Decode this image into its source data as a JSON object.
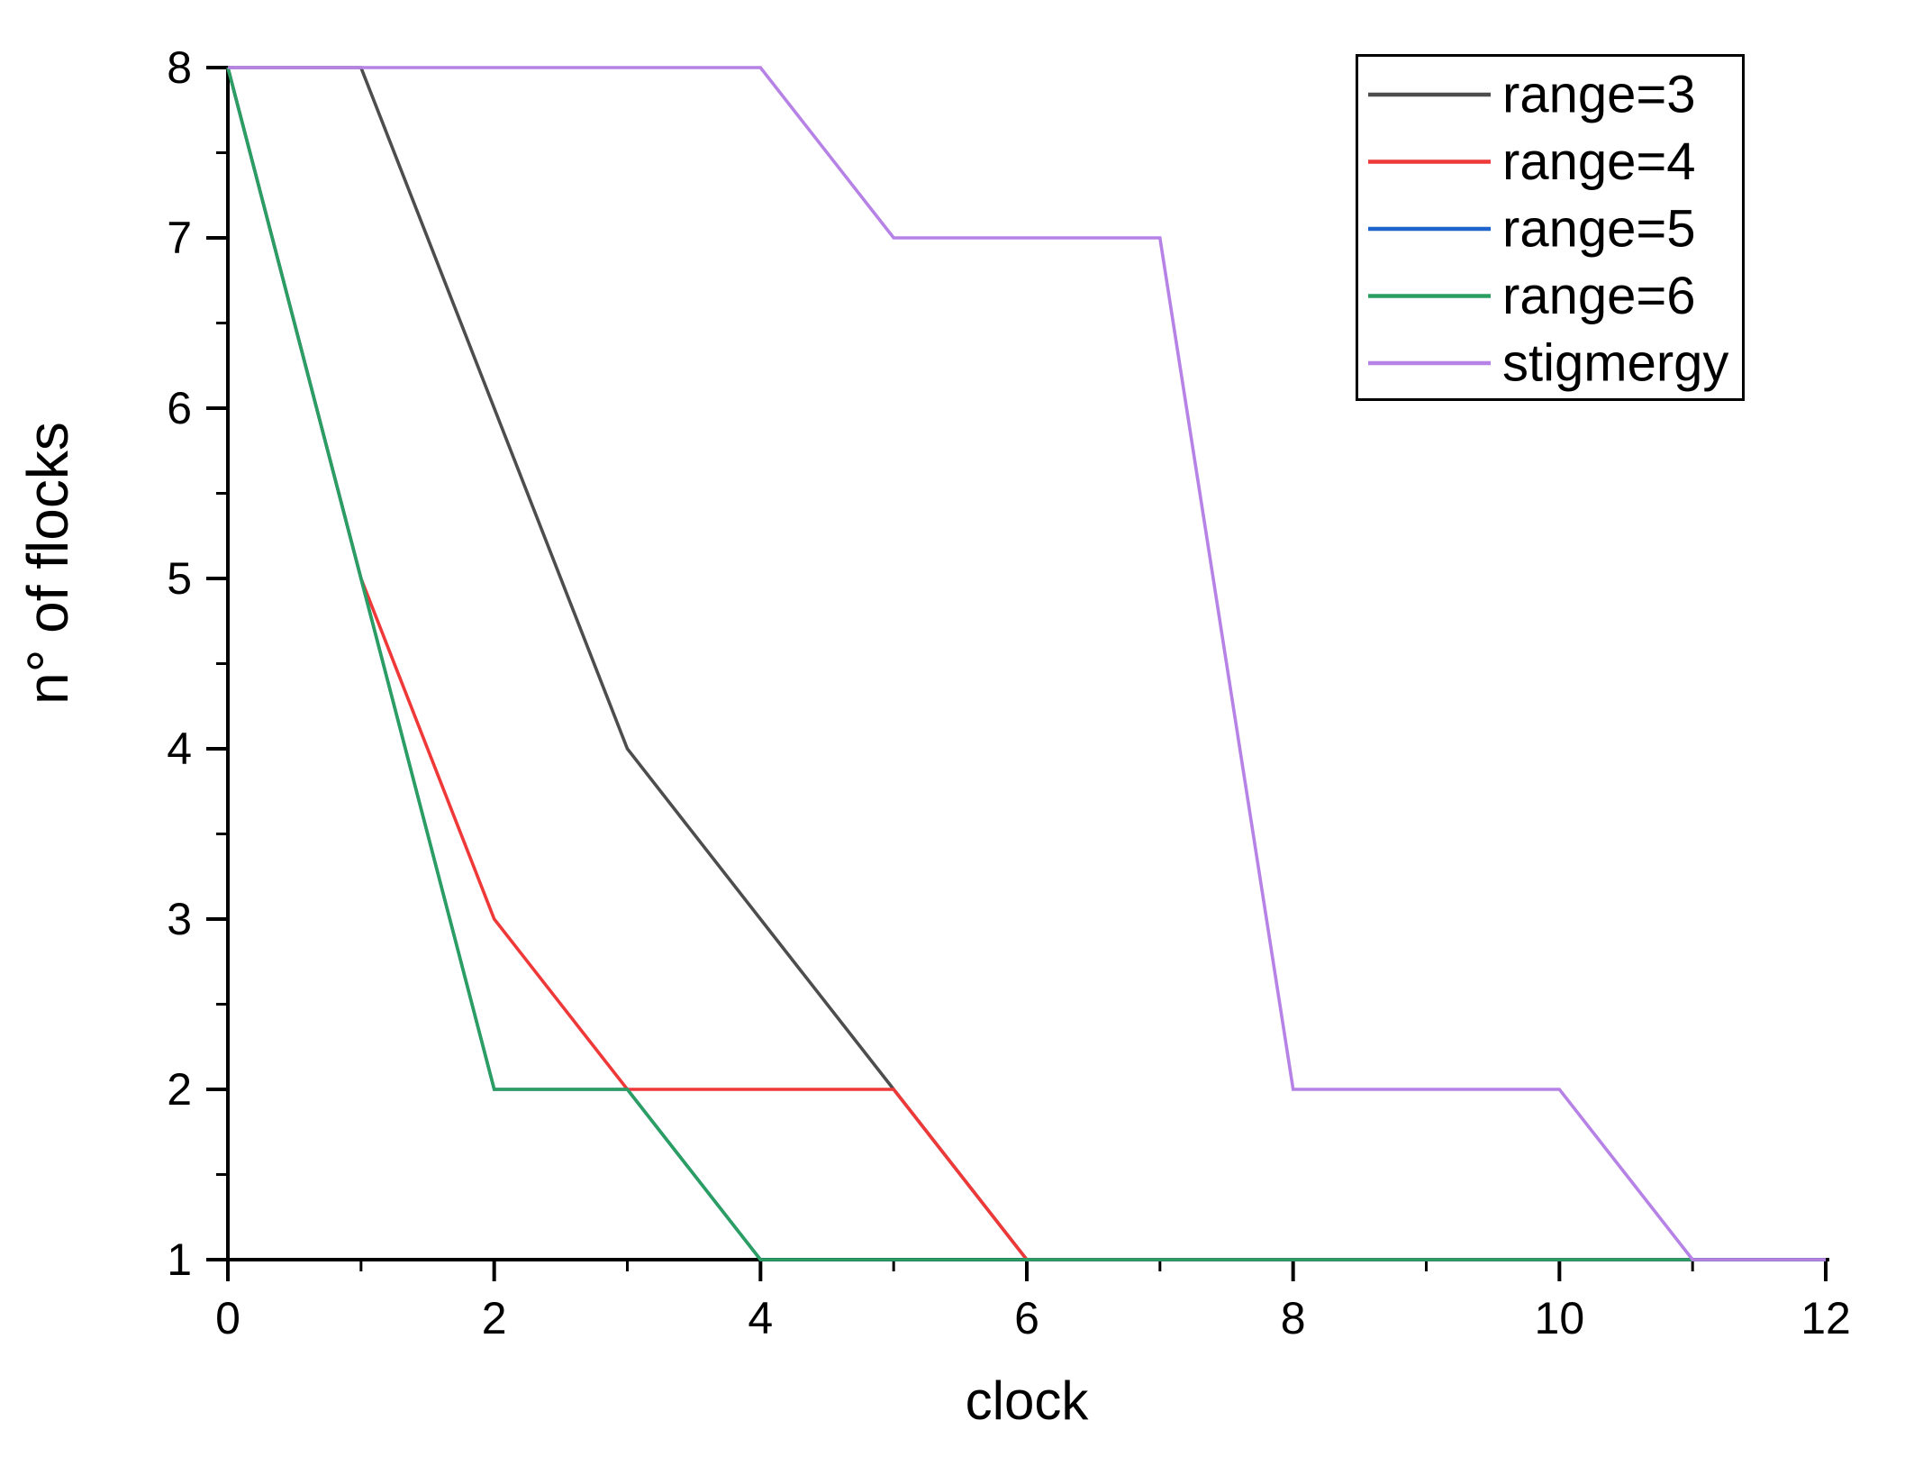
{
  "chart_data": {
    "type": "line",
    "title": "",
    "xlabel": "clock",
    "ylabel": "n° of flocks",
    "xlim": [
      0,
      12
    ],
    "ylim": [
      1,
      8
    ],
    "grid": false,
    "axis_color": "#000000",
    "x_major_ticks": [
      0,
      2,
      4,
      6,
      8,
      10,
      12
    ],
    "x_minor_ticks": [
      1,
      3,
      5,
      7,
      9,
      11
    ],
    "y_major_ticks": [
      1,
      2,
      3,
      4,
      5,
      6,
      7,
      8
    ],
    "y_minor_ticks": [
      1.5,
      2.5,
      3.5,
      4.5,
      5.5,
      6.5,
      7.5
    ],
    "legend": {
      "position": "top-right",
      "border": true
    },
    "x": [
      0,
      1,
      2,
      3,
      4,
      5,
      6,
      7,
      8,
      9,
      10,
      11,
      12
    ],
    "series": [
      {
        "name": "range=3",
        "color": "#4d4d4d",
        "values": [
          8,
          8,
          6,
          4,
          3,
          2,
          1,
          1,
          1,
          1,
          1,
          1,
          1
        ]
      },
      {
        "name": "range=4",
        "color": "#ef3838",
        "values": [
          8,
          5,
          3,
          2,
          2,
          2,
          1,
          1,
          1,
          1,
          1,
          1,
          1
        ]
      },
      {
        "name": "range=5",
        "color": "#1f64cc",
        "values": [
          8,
          5,
          2,
          2,
          1,
          1,
          1,
          1,
          1,
          1,
          1,
          1,
          1
        ]
      },
      {
        "name": "range=6",
        "color": "#2b9e62",
        "values": [
          8,
          5,
          2,
          2,
          1,
          1,
          1,
          1,
          1,
          1,
          1,
          1,
          1
        ]
      },
      {
        "name": "stigmergy",
        "color": "#b682e6",
        "values": [
          8,
          8,
          8,
          8,
          8,
          7,
          7,
          7,
          2,
          2,
          2,
          1,
          1
        ]
      }
    ]
  }
}
